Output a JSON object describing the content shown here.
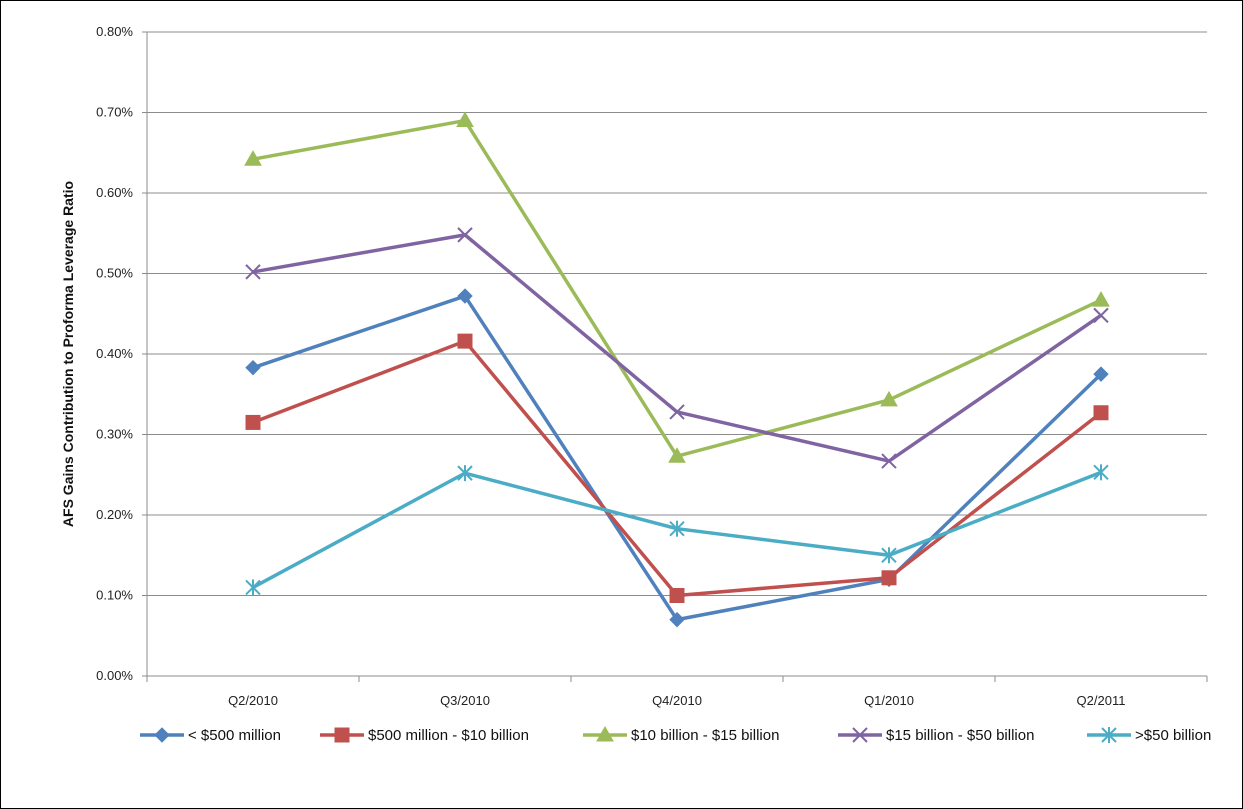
{
  "chart_data": {
    "type": "line",
    "title": "",
    "xlabel": "",
    "ylabel": "AFS Gains Contribution to Proforma Leverage Ratio",
    "categories": [
      "Q2/2010",
      "Q3/2010",
      "Q4/2010",
      "Q1/2010",
      "Q2/2011"
    ],
    "ylim": [
      0,
      0.8
    ],
    "yticks": [
      "0.00%",
      "0.10%",
      "0.20%",
      "0.30%",
      "0.40%",
      "0.50%",
      "0.60%",
      "0.70%",
      "0.80%"
    ],
    "ytick_values": [
      0,
      0.1,
      0.2,
      0.3,
      0.4,
      0.5,
      0.6,
      0.7,
      0.8
    ],
    "grid": true,
    "legend_position": "bottom",
    "series": [
      {
        "name": "< $500 million",
        "color": "#4F81BD",
        "marker": "diamond",
        "values": [
          0.383,
          0.472,
          0.07,
          0.12,
          0.375
        ]
      },
      {
        "name": "$500 million - $10 billion",
        "color": "#C0504D",
        "marker": "square",
        "values": [
          0.315,
          0.416,
          0.1,
          0.122,
          0.327
        ]
      },
      {
        "name": "$10 billion - $15 billion",
        "color": "#9BBB59",
        "marker": "triangle",
        "values": [
          0.642,
          0.69,
          0.273,
          0.343,
          0.467
        ]
      },
      {
        "name": "$15 billion - $50 billion",
        "color": "#8064A2",
        "marker": "x",
        "values": [
          0.502,
          0.548,
          0.328,
          0.267,
          0.448
        ]
      },
      {
        "name": ">$50 billion",
        "color": "#4BACC6",
        "marker": "asterisk",
        "values": [
          0.11,
          0.252,
          0.183,
          0.15,
          0.253
        ]
      }
    ]
  }
}
